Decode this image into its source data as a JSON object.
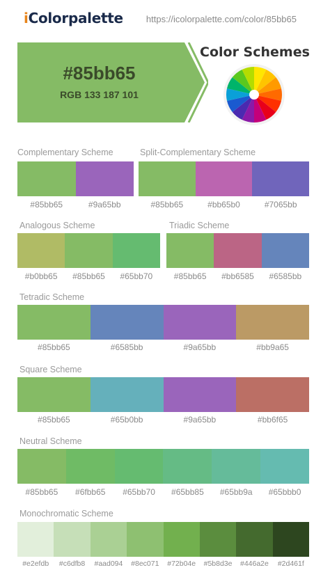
{
  "header": {
    "logo_prefix": "i",
    "logo_rest": "Colorpalette",
    "url": "https://icolorpalette.com/color/85bb65"
  },
  "hero": {
    "hex": "#85bb65",
    "rgb": "RGB 133 187 101",
    "color": "#85bb65"
  },
  "color_schemes_title": "Color Schemes",
  "sections": {
    "complementary": {
      "title": "Complementary Scheme",
      "colors": [
        "#85bb65",
        "#9a65bb"
      ],
      "labels": [
        "#85bb65",
        "#9a65bb"
      ]
    },
    "split": {
      "title": "Split-Complementary Scheme",
      "colors": [
        "#85bb65",
        "#bb65b0",
        "#7065bb"
      ],
      "labels": [
        "#85bb65",
        "#bb65b0",
        "#7065bb"
      ]
    },
    "analogous": {
      "title": "Analogous Scheme",
      "colors": [
        "#b0bb65",
        "#85bb65",
        "#65bb70"
      ],
      "labels": [
        "#b0bb65",
        "#85bb65",
        "#65bb70"
      ]
    },
    "triadic": {
      "title": "Triadic Scheme",
      "colors": [
        "#85bb65",
        "#bb6585",
        "#6585bb"
      ],
      "labels": [
        "#85bb65",
        "#bb6585",
        "#6585bb"
      ]
    },
    "tetradic": {
      "title": "Tetradic Scheme",
      "colors": [
        "#85bb65",
        "#6585bb",
        "#9a65bb",
        "#bb9a65"
      ],
      "labels": [
        "#85bb65",
        "#6585bb",
        "#9a65bb",
        "#bb9a65"
      ]
    },
    "square": {
      "title": "Square Scheme",
      "colors": [
        "#85bb65",
        "#65b0bb",
        "#9a65bb",
        "#bb6f65"
      ],
      "labels": [
        "#85bb65",
        "#65b0bb",
        "#9a65bb",
        "#bb6f65"
      ]
    },
    "neutral": {
      "title": "Neutral Scheme",
      "colors": [
        "#85bb65",
        "#6fbb65",
        "#65bb70",
        "#65bb85",
        "#65bb9a",
        "#65bbb0"
      ],
      "labels": [
        "#85bb65",
        "#6fbb65",
        "#65bb70",
        "#65bb85",
        "#65bb9a",
        "#65bbb0"
      ]
    },
    "mono": {
      "title": "Monochromatic Scheme",
      "colors": [
        "#e2efdb",
        "#c6dfb8",
        "#aad094",
        "#8ec071",
        "#72b04e",
        "#5b8d3e",
        "#446a2e",
        "#2d461f"
      ],
      "labels": [
        "#e2efdb",
        "#c6dfb8",
        "#aad094",
        "#8ec071",
        "#72b04e",
        "#5b8d3e",
        "#446a2e",
        "#2d461f"
      ]
    }
  }
}
